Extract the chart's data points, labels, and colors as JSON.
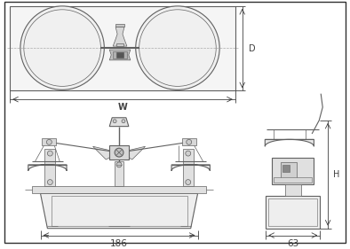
{
  "bg_color": "#ffffff",
  "lc": "#606060",
  "dc": "#404040",
  "mg": "#999999",
  "label_D": "D",
  "label_W": "W",
  "label_186": "186",
  "label_63": "63",
  "label_H": "H"
}
